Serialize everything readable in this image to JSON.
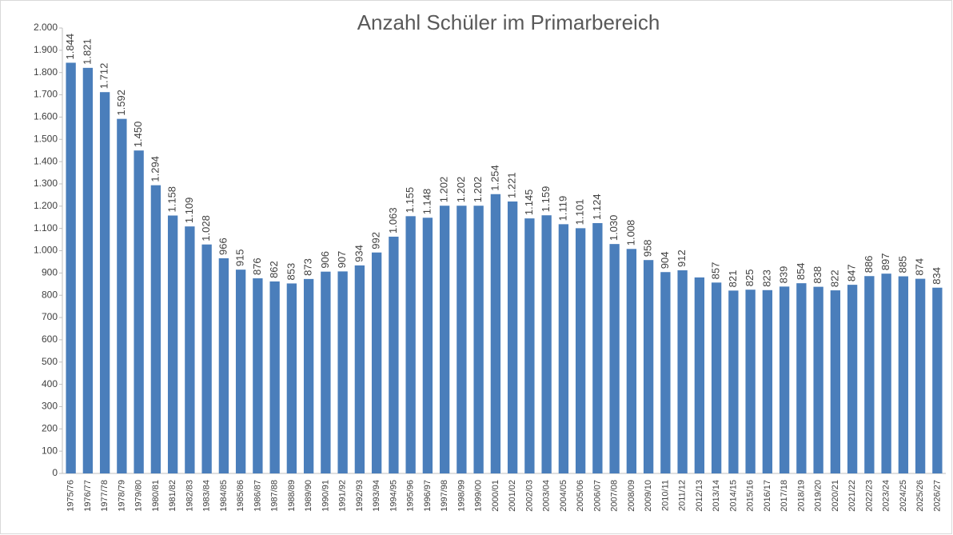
{
  "chart_data": {
    "type": "bar",
    "title": "Anzahl Schüler im Primarbereich",
    "categories": [
      "1975/76",
      "1976/77",
      "1977/78",
      "1978/79",
      "1979/80",
      "1980/81",
      "1981/82",
      "1982/83",
      "1983/84",
      "1984/85",
      "1985/86",
      "1986/87",
      "1987/88",
      "1988/89",
      "1989/90",
      "1990/91",
      "1991/92",
      "1992/93",
      "1993/94",
      "1994/95",
      "1995/96",
      "1996/97",
      "1997/98",
      "1998/99",
      "1999/00",
      "2000/01",
      "2001/02",
      "2002/03",
      "2003/04",
      "2004/05",
      "2005/06",
      "2006/07",
      "2007/08",
      "2008/09",
      "2009/10",
      "2010/11",
      "2011/12",
      "2012/13",
      "2013/14",
      "2014/15",
      "2015/16",
      "2016/17",
      "2017/18",
      "2018/19",
      "2019/20",
      "2020/21",
      "2021/22",
      "2022/23",
      "2023/24",
      "2024/25",
      "2025/26",
      "2026/27"
    ],
    "values": [
      1844,
      1821,
      1712,
      1592,
      1450,
      1294,
      1158,
      1109,
      1028,
      966,
      915,
      876,
      862,
      853,
      873,
      906,
      907,
      934,
      992,
      1063,
      1155,
      1148,
      1202,
      1202,
      1202,
      1254,
      1221,
      1145,
      1159,
      1119,
      1101,
      1124,
      1030,
      1008,
      958,
      904,
      912,
      880,
      857,
      821,
      825,
      823,
      839,
      854,
      838,
      822,
      847,
      886,
      897,
      885,
      874,
      834
    ],
    "value_labels": [
      "1.844",
      "1.821",
      "1.712",
      "1.592",
      "1.450",
      "1.294",
      "1.158",
      "1.109",
      "1.028",
      "966",
      "915",
      "876",
      "862",
      "853",
      "873",
      "906",
      "907",
      "934",
      "992",
      "1.063",
      "1.155",
      "1.148",
      "1.202",
      "1.202",
      "1.202",
      "1.254",
      "1.221",
      "1.145",
      "1.159",
      "1.119",
      "1.101",
      "1.124",
      "1.030",
      "1.008",
      "958",
      "904",
      "912",
      null,
      "857",
      "821",
      "825",
      "823",
      "839",
      "854",
      "838",
      "822",
      "847",
      "886",
      "897",
      "885",
      "874",
      "834"
    ],
    "color": "#4a7ebb",
    "ylim": [
      0,
      2000
    ],
    "yticks": [
      0,
      100,
      200,
      300,
      400,
      500,
      600,
      700,
      800,
      900,
      {
        "value": 1000,
        "label": "1.000"
      },
      {
        "value": 1100,
        "label": "1.100"
      },
      {
        "value": 1200,
        "label": "1.200"
      },
      {
        "value": 1300,
        "label": "1.300"
      },
      {
        "value": 1400,
        "label": "1.400"
      },
      {
        "value": 1500,
        "label": "1.500"
      },
      {
        "value": 1600,
        "label": "1.600"
      },
      {
        "value": 1700,
        "label": "1.700"
      },
      {
        "value": 1800,
        "label": "1.800"
      },
      {
        "value": 1900,
        "label": "1.900"
      },
      {
        "value": 2000,
        "label": "2.000"
      }
    ],
    "grid": false
  }
}
